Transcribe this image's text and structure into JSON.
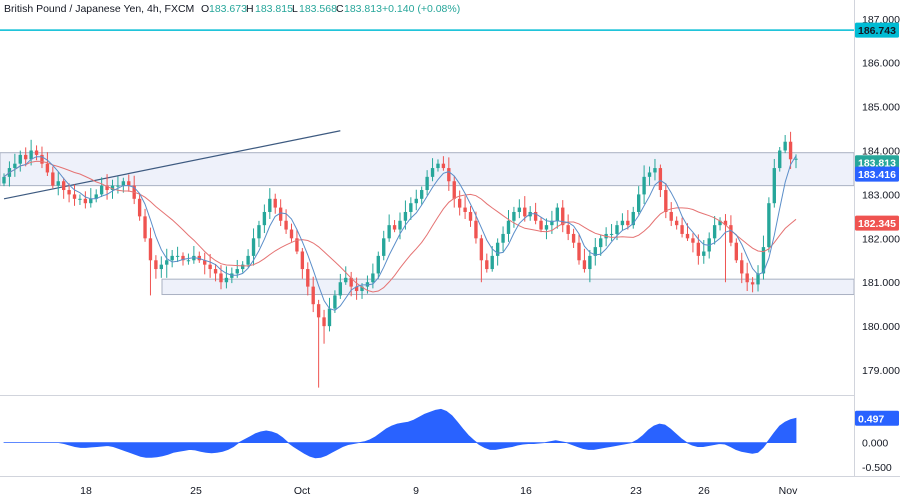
{
  "header": {
    "symbol": "British Pound / Japanese Yen, 4h, FXCM",
    "o_label": "O",
    "o_value": "183.673",
    "h_label": "H",
    "h_value": "183.815",
    "l_label": "L",
    "l_value": "183.568",
    "c_label": "C",
    "c_value": "183.813",
    "change": "+0.140 (+0.08%)"
  },
  "colors": {
    "up": "#26a69a",
    "down": "#ef5350",
    "ma_fast": "#5b8ec9",
    "ma_slow": "#e57373",
    "osc_fill": "#2962ff",
    "level_line": "#00bcd4",
    "zone_border": "#a9b1c2",
    "zone_fill": "#eef1fa",
    "trend_line": "#3d5a80"
  },
  "chart_data": [
    {
      "type": "candlestick",
      "x_ticks": [
        "18",
        "25",
        "Oct",
        "9",
        "16",
        "23",
        "26",
        "Nov"
      ],
      "y_ticks": [
        "187.000",
        "186.000",
        "185.000",
        "184.000",
        "183.000",
        "182.000",
        "181.000",
        "180.000",
        "179.000"
      ],
      "ylim": [
        178.5,
        187.2
      ],
      "badges": [
        {
          "label": "186.743",
          "value": 186.743,
          "style": "level"
        },
        {
          "label": "183.813",
          "value": 183.813,
          "style": "price"
        },
        {
          "label": "183.416",
          "value": 183.416,
          "style": "ma_fast"
        },
        {
          "label": "182.345",
          "value": 182.345,
          "style": "ma_slow"
        }
      ],
      "horizontal_level": 186.743,
      "zones": [
        {
          "low": 183.2,
          "high": 183.95
        },
        {
          "low": 180.72,
          "high": 181.07
        }
      ],
      "trend_line": [
        {
          "bar": 0,
          "value": 182.9
        },
        {
          "bar": 62,
          "value": 184.45
        }
      ],
      "closes": [
        183.4,
        183.6,
        183.7,
        183.9,
        183.8,
        184.0,
        183.9,
        183.7,
        183.5,
        183.2,
        183.3,
        183.1,
        183.0,
        182.9,
        182.9,
        182.8,
        182.9,
        183.0,
        183.2,
        183.1,
        183.2,
        183.2,
        183.3,
        183.2,
        182.9,
        182.5,
        182.0,
        181.5,
        181.3,
        181.4,
        181.5,
        181.6,
        181.6,
        181.5,
        181.5,
        181.6,
        181.5,
        181.4,
        181.3,
        181.2,
        181.0,
        181.1,
        181.2,
        181.3,
        181.4,
        181.6,
        182.0,
        182.3,
        182.6,
        182.9,
        182.7,
        182.4,
        182.2,
        182.0,
        181.7,
        181.3,
        180.9,
        180.5,
        180.2,
        180.0,
        180.4,
        180.7,
        181.0,
        181.1,
        180.9,
        180.8,
        180.9,
        181.0,
        181.2,
        181.6,
        182.0,
        182.3,
        182.2,
        182.4,
        182.6,
        182.8,
        182.9,
        183.1,
        183.4,
        183.6,
        183.7,
        183.6,
        183.3,
        182.9,
        182.7,
        182.6,
        182.4,
        182.0,
        181.5,
        181.3,
        181.6,
        181.9,
        182.1,
        182.4,
        182.6,
        182.7,
        182.5,
        182.6,
        182.4,
        182.2,
        182.3,
        182.4,
        182.7,
        182.3,
        182.1,
        181.9,
        181.5,
        181.3,
        181.6,
        181.8,
        182.0,
        182.1,
        182.1,
        182.3,
        182.4,
        182.3,
        182.6,
        183.0,
        183.4,
        183.5,
        183.6,
        183.1,
        182.6,
        182.4,
        182.3,
        182.1,
        182.0,
        181.9,
        181.6,
        181.7,
        182.0,
        182.3,
        182.4,
        182.3,
        181.9,
        181.5,
        181.2,
        181.0,
        180.95,
        181.2,
        181.8,
        182.8,
        183.6,
        184.0,
        184.2,
        183.8,
        183.813
      ]
    },
    {
      "type": "area",
      "y_ticks": [
        "0.000",
        "-0.500"
      ],
      "value_badge": {
        "label": "0.497",
        "value": 0.497
      },
      "ylim": [
        -0.62,
        0.85
      ],
      "values": [
        0.0,
        0.0,
        0.0,
        0.0,
        0.0,
        0.0,
        0.0,
        0.0,
        0.0,
        0.0,
        0.0,
        -0.02,
        -0.05,
        -0.08,
        -0.1,
        -0.1,
        -0.09,
        -0.08,
        -0.07,
        -0.06,
        -0.08,
        -0.12,
        -0.16,
        -0.2,
        -0.24,
        -0.28,
        -0.3,
        -0.3,
        -0.29,
        -0.27,
        -0.24,
        -0.2,
        -0.18,
        -0.16,
        -0.14,
        -0.15,
        -0.18,
        -0.2,
        -0.21,
        -0.2,
        -0.18,
        -0.14,
        -0.08,
        0.0,
        0.06,
        0.12,
        0.18,
        0.22,
        0.24,
        0.22,
        0.18,
        0.1,
        0.0,
        -0.08,
        -0.15,
        -0.22,
        -0.28,
        -0.31,
        -0.3,
        -0.26,
        -0.2,
        -0.14,
        -0.08,
        -0.04,
        -0.02,
        0.0,
        0.02,
        0.06,
        0.12,
        0.2,
        0.28,
        0.34,
        0.38,
        0.4,
        0.42,
        0.46,
        0.52,
        0.58,
        0.62,
        0.66,
        0.68,
        0.64,
        0.55,
        0.42,
        0.28,
        0.15,
        0.05,
        -0.04,
        -0.1,
        -0.14,
        -0.14,
        -0.12,
        -0.1,
        -0.08,
        -0.05,
        -0.03,
        -0.02,
        -0.02,
        -0.01,
        0.0,
        0.02,
        0.04,
        0.02,
        0.0,
        -0.04,
        -0.08,
        -0.12,
        -0.14,
        -0.14,
        -0.12,
        -0.1,
        -0.08,
        -0.06,
        -0.04,
        -0.02,
        0.0,
        0.06,
        0.15,
        0.26,
        0.34,
        0.38,
        0.36,
        0.28,
        0.18,
        0.08,
        0.0,
        -0.05,
        -0.08,
        -0.08,
        -0.06,
        -0.04,
        -0.02,
        -0.03,
        -0.08,
        -0.14,
        -0.18,
        -0.2,
        -0.22,
        -0.2,
        -0.1,
        0.05,
        0.2,
        0.34,
        0.42,
        0.47,
        0.497
      ]
    }
  ]
}
